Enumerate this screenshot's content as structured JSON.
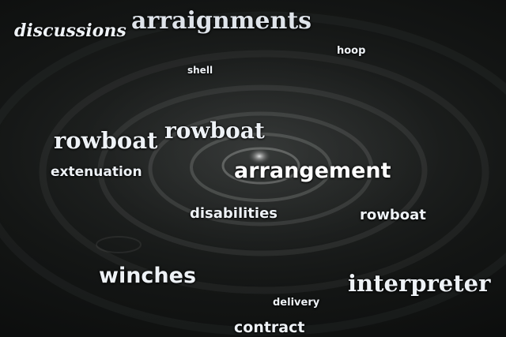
{
  "words": {
    "discussions": "discussions",
    "arraignments": "arraignments",
    "hoop": "hoop",
    "shell": "shell",
    "rowboat_left": "rowboat",
    "rowboat_center": "rowboat",
    "extenuation": "extenuation",
    "arrangement": "arrangement",
    "disabilities": "disabilities",
    "rowboat_right": "rowboat",
    "winches": "winches",
    "interpreter": "interpreter",
    "delivery": "delivery",
    "contract": "contract"
  },
  "colors": {
    "text": "#eef2f6",
    "background": "#141615"
  }
}
